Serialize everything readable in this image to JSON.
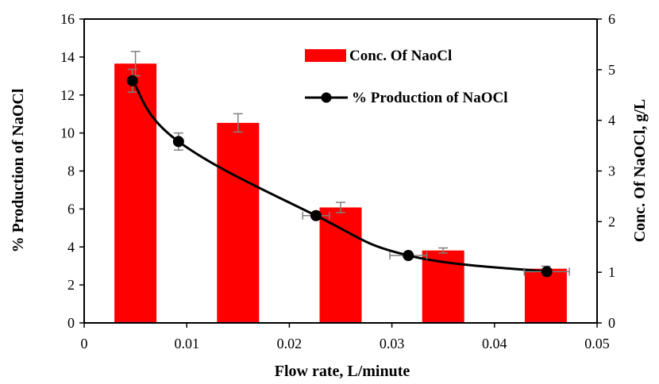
{
  "chart_data": {
    "type": "bar+line",
    "x_axis": {
      "label": "Flow rate, L/minute",
      "range": [
        0,
        0.05
      ],
      "ticks": [
        "0",
        "0.01",
        "0.02",
        "0.03",
        "0.04",
        "0.05"
      ],
      "tick_values": [
        0,
        0.01,
        0.02,
        0.03,
        0.04,
        0.05
      ]
    },
    "y_left_axis": {
      "label": "% Production of NaOCl",
      "range": [
        0,
        16
      ],
      "ticks": [
        "0",
        "2",
        "4",
        "6",
        "8",
        "10",
        "12",
        "14",
        "16"
      ],
      "tick_values": [
        0,
        2,
        4,
        6,
        8,
        10,
        12,
        14,
        16
      ]
    },
    "y_right_axis": {
      "label": "Conc. Of NaOCl, g/L",
      "range": [
        0,
        6
      ],
      "ticks": [
        "0",
        "1",
        "2",
        "3",
        "4",
        "5",
        "6"
      ],
      "tick_values": [
        0,
        1,
        2,
        3,
        4,
        5,
        6
      ]
    },
    "bars": {
      "name": "Conc. Of NaoCl",
      "axis": "right",
      "color": "#ff0000",
      "points": [
        {
          "x": 0.005,
          "y": 5.12,
          "error": 0.24
        },
        {
          "x": 0.015,
          "y": 3.95,
          "error": 0.18
        },
        {
          "x": 0.025,
          "y": 2.28,
          "error": 0.1
        },
        {
          "x": 0.035,
          "y": 1.43,
          "error": 0.05
        },
        {
          "x": 0.045,
          "y": 1.07,
          "error": 0.05
        }
      ]
    },
    "line": {
      "name": "% Production of NaOCl",
      "axis": "left",
      "color": "#000000",
      "points": [
        {
          "x": 0.0047,
          "y": 12.75,
          "y_error": 0.6,
          "x_error": 0
        },
        {
          "x": 0.0092,
          "y": 9.55,
          "y_error": 0.45,
          "x_error": 0
        },
        {
          "x": 0.0226,
          "y": 5.65,
          "y_error": 0,
          "x_error": 0.0013
        },
        {
          "x": 0.0316,
          "y": 3.55,
          "y_error": 0,
          "x_error": 0.0018
        },
        {
          "x": 0.0451,
          "y": 2.7,
          "y_error": 0,
          "x_error": 0.0022
        }
      ]
    },
    "legend": {
      "position": "top-right",
      "entries": [
        "Conc. Of NaoCl",
        "% Production of NaOCl"
      ]
    },
    "grid": false
  }
}
